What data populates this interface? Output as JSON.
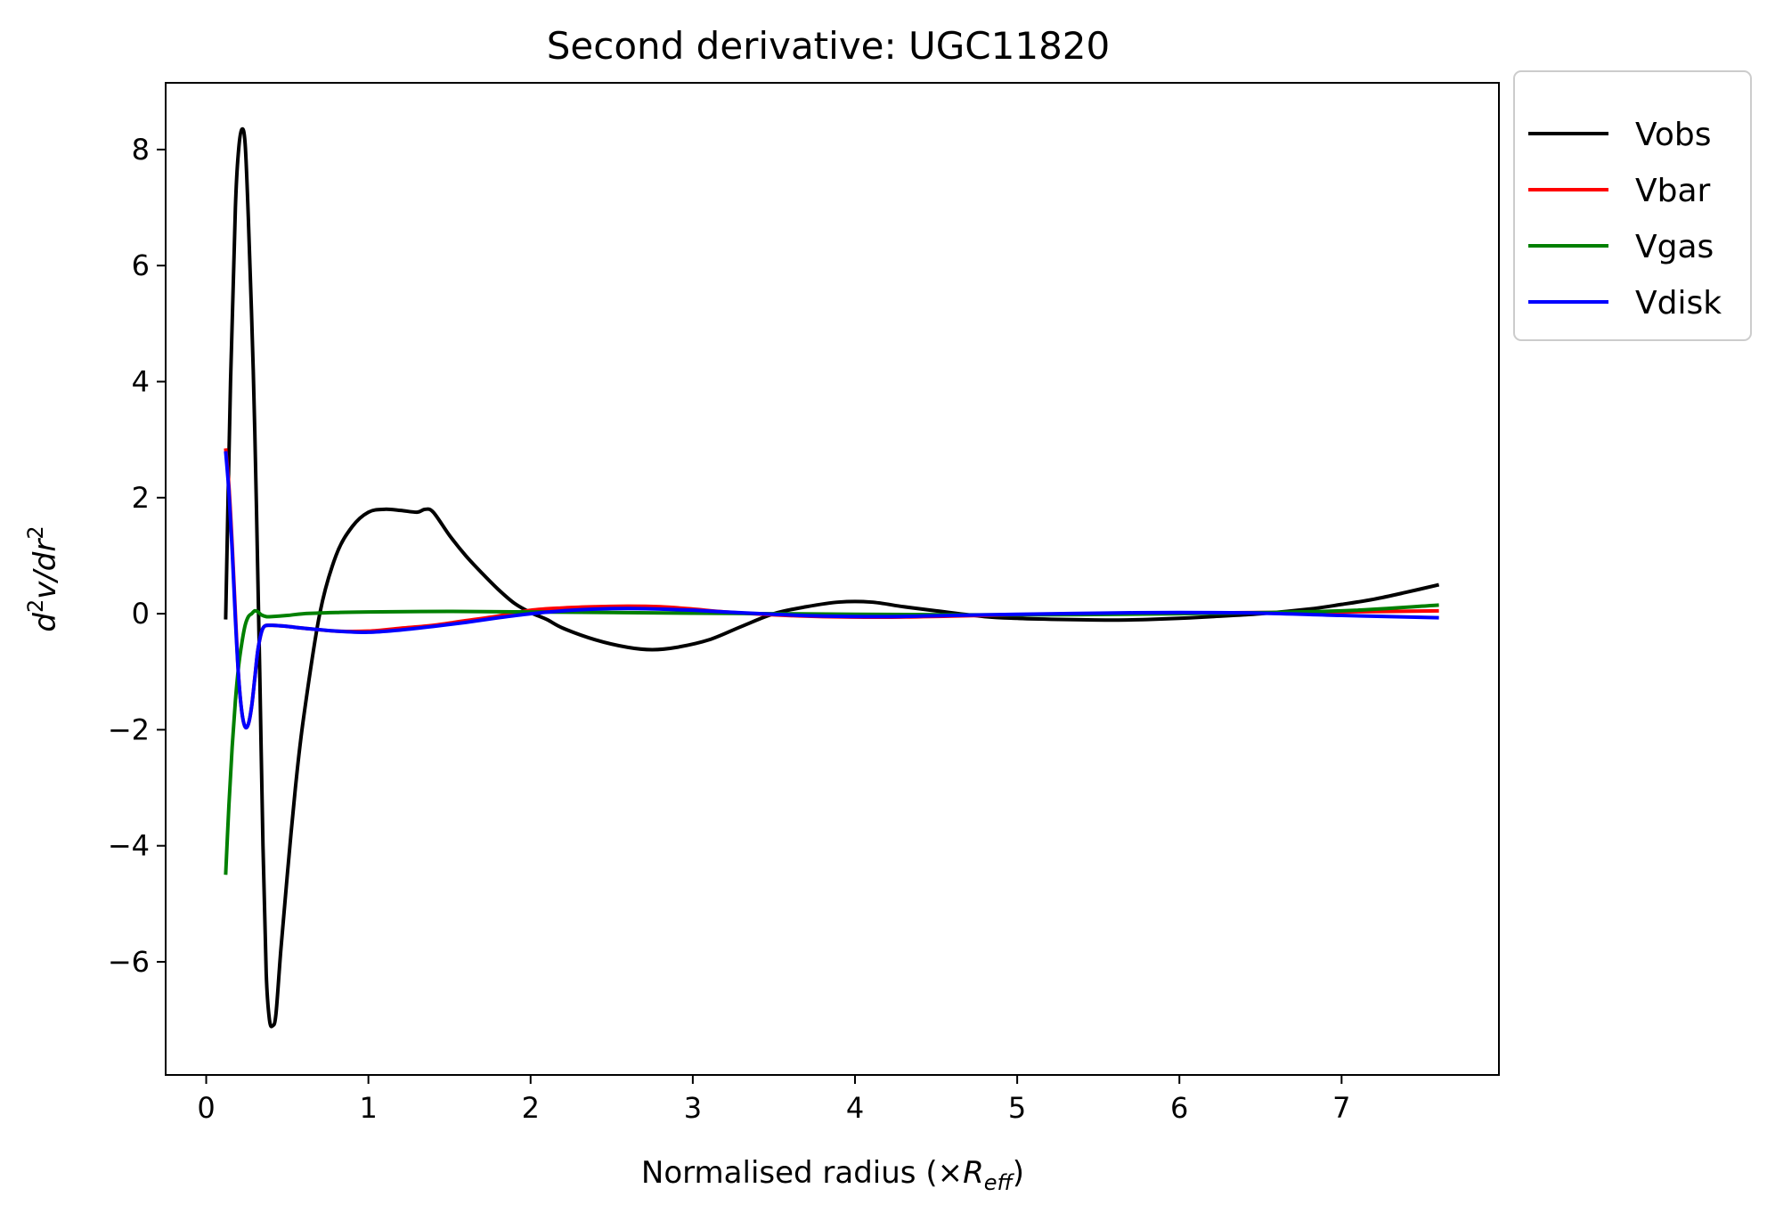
{
  "chart_data": {
    "type": "line",
    "title": "Second derivative: UGC11820",
    "xlabel": "Normalised radius (×R_eff)",
    "xlabel_parts": {
      "prefix": "Normalised radius (×",
      "symbol": "R",
      "subscript": "eff",
      "suffix": ")"
    },
    "ylabel": "d^2v/dr^2",
    "ylabel_parts": {
      "d1": "d",
      "sup1": "2",
      "v": "v/dr",
      "sup2": "2"
    },
    "xlim": [
      -0.25,
      7.97
    ],
    "ylim": [
      -7.95,
      9.15
    ],
    "xticks": [
      0,
      1,
      2,
      3,
      4,
      5,
      6,
      7
    ],
    "xtick_labels": [
      "0",
      "1",
      "2",
      "3",
      "4",
      "5",
      "6",
      "7"
    ],
    "yticks": [
      -6,
      -4,
      -2,
      0,
      2,
      4,
      6,
      8
    ],
    "ytick_labels": [
      "−6",
      "−4",
      "−2",
      "0",
      "2",
      "4",
      "6",
      "8"
    ],
    "grid": false,
    "legend_position": "outside-top-right",
    "series": [
      {
        "name": "Vobs",
        "color": "#000000",
        "x": [
          0.12,
          0.15,
          0.18,
          0.2,
          0.22,
          0.24,
          0.26,
          0.29,
          0.31,
          0.33,
          0.35,
          0.37,
          0.39,
          0.41,
          0.43,
          0.46,
          0.5,
          0.55,
          0.6,
          0.7,
          0.8,
          0.9,
          1.0,
          1.1,
          1.2,
          1.3,
          1.35,
          1.4,
          1.5,
          1.6,
          1.7,
          1.8,
          1.9,
          2.0,
          2.1,
          2.2,
          2.4,
          2.6,
          2.75,
          2.9,
          3.1,
          3.3,
          3.5,
          3.7,
          3.9,
          4.1,
          4.3,
          4.5,
          4.8,
          5.0,
          5.3,
          5.6,
          5.8,
          6.0,
          6.2,
          6.5,
          6.8,
          7.0,
          7.2,
          7.4,
          7.6
        ],
        "y": [
          -0.1,
          4.0,
          7.0,
          8.0,
          8.35,
          8.1,
          6.8,
          4.2,
          1.8,
          -1.0,
          -4.0,
          -6.2,
          -7.0,
          -7.1,
          -6.9,
          -5.8,
          -4.5,
          -3.0,
          -1.8,
          0.0,
          1.0,
          1.5,
          1.75,
          1.8,
          1.78,
          1.75,
          1.8,
          1.75,
          1.35,
          1.0,
          0.7,
          0.42,
          0.18,
          0.02,
          -0.1,
          -0.25,
          -0.45,
          -0.58,
          -0.62,
          -0.58,
          -0.45,
          -0.22,
          0.0,
          0.12,
          0.2,
          0.2,
          0.12,
          0.05,
          -0.05,
          -0.08,
          -0.1,
          -0.11,
          -0.1,
          -0.08,
          -0.05,
          0.0,
          0.08,
          0.16,
          0.25,
          0.37,
          0.5
        ]
      },
      {
        "name": "Vbar",
        "color": "#ff0000",
        "x": [
          0.12,
          0.14,
          0.16,
          0.18,
          0.2,
          0.22,
          0.24,
          0.26,
          0.28,
          0.3,
          0.32,
          0.35,
          0.4,
          0.5,
          0.6,
          0.8,
          1.0,
          1.2,
          1.4,
          1.6,
          1.8,
          2.0,
          2.2,
          2.4,
          2.6,
          2.8,
          3.0,
          3.2,
          3.5,
          3.8,
          4.2,
          4.6,
          5.0,
          5.5,
          6.0,
          6.5,
          7.0,
          7.6
        ],
        "y": [
          2.85,
          2.2,
          1.2,
          0.0,
          -1.1,
          -1.7,
          -1.95,
          -1.9,
          -1.6,
          -1.1,
          -0.6,
          -0.25,
          -0.2,
          -0.22,
          -0.25,
          -0.3,
          -0.3,
          -0.25,
          -0.2,
          -0.12,
          -0.04,
          0.06,
          0.1,
          0.12,
          0.13,
          0.12,
          0.08,
          0.03,
          -0.02,
          -0.05,
          -0.06,
          -0.04,
          -0.02,
          0.0,
          0.01,
          0.02,
          0.03,
          0.05
        ]
      },
      {
        "name": "Vgas",
        "color": "#008000",
        "x": [
          0.12,
          0.14,
          0.16,
          0.18,
          0.2,
          0.22,
          0.24,
          0.26,
          0.28,
          0.3,
          0.32,
          0.34,
          0.37,
          0.4,
          0.5,
          0.6,
          0.8,
          1.0,
          1.5,
          2.0,
          2.5,
          3.0,
          3.5,
          4.0,
          5.0,
          6.0,
          7.0,
          7.6
        ],
        "y": [
          -4.5,
          -3.3,
          -2.3,
          -1.5,
          -0.9,
          -0.5,
          -0.2,
          -0.05,
          0.0,
          0.05,
          0.03,
          -0.02,
          -0.05,
          -0.05,
          -0.03,
          0.0,
          0.02,
          0.03,
          0.04,
          0.03,
          0.02,
          0.01,
          0.0,
          -0.01,
          -0.02,
          0.0,
          0.05,
          0.15
        ]
      },
      {
        "name": "Vdisk",
        "color": "#0000ff",
        "x": [
          0.12,
          0.14,
          0.16,
          0.18,
          0.2,
          0.22,
          0.24,
          0.26,
          0.28,
          0.3,
          0.32,
          0.35,
          0.4,
          0.5,
          0.6,
          0.8,
          1.0,
          1.2,
          1.4,
          1.6,
          1.8,
          2.0,
          2.2,
          2.4,
          2.6,
          2.8,
          3.0,
          3.2,
          3.5,
          3.8,
          4.2,
          4.6,
          5.0,
          5.5,
          6.0,
          6.5,
          7.0,
          7.6
        ],
        "y": [
          2.8,
          2.1,
          1.1,
          -0.1,
          -1.1,
          -1.7,
          -1.95,
          -1.9,
          -1.6,
          -1.1,
          -0.6,
          -0.25,
          -0.2,
          -0.22,
          -0.25,
          -0.3,
          -0.32,
          -0.28,
          -0.22,
          -0.15,
          -0.07,
          0.0,
          0.05,
          0.08,
          0.09,
          0.08,
          0.06,
          0.03,
          -0.01,
          -0.04,
          -0.05,
          -0.03,
          -0.01,
          0.01,
          0.02,
          0.01,
          -0.03,
          -0.07
        ]
      }
    ]
  }
}
